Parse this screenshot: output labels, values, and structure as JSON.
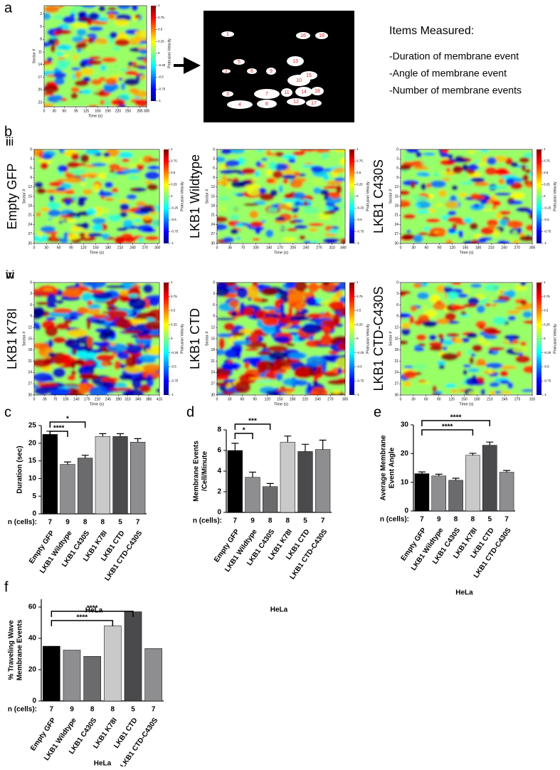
{
  "panels": [
    "a",
    "b",
    "c",
    "d",
    "e",
    "f"
  ],
  "mask": {
    "labels": [
      "1",
      "16",
      "19",
      "5",
      "13",
      "2",
      "6",
      "9",
      "10",
      "15",
      "3",
      "7",
      "11",
      "14",
      "18",
      "4",
      "8",
      "12",
      "17"
    ]
  },
  "items": {
    "title": "Items Measured:",
    "lines": [
      "-Duration of membrane event",
      "-Angle of membrane event",
      "-Number of membrane events"
    ]
  },
  "chart_data": [
    {
      "type": "heatmap",
      "xlabel": "Time (s)",
      "ylabel": "Sector #",
      "colorbar_label": "Protrusion Velocity",
      "xlim": [
        0,
        305
      ],
      "xticks": [
        0,
        30,
        60,
        95,
        125,
        160,
        190,
        220,
        250,
        285,
        305
      ],
      "ylim": [
        0,
        24
      ],
      "yticks": [
        2,
        5,
        8,
        11,
        14,
        17,
        20,
        23
      ],
      "clim": [
        -1,
        1
      ],
      "cticks": [
        -1,
        -0.75,
        -0.5,
        -0.25,
        0,
        0.25,
        0.5,
        0.75,
        1
      ]
    },
    {
      "type": "heatmap",
      "panel": "i",
      "title": "Empty GFP",
      "xlabel": "Time (s)",
      "ylabel": "Sector #",
      "colorbar_label": "Protrusion Velocity",
      "xlim": [
        0,
        305
      ],
      "xticks": [
        0,
        30,
        60,
        90,
        120,
        150,
        180,
        210,
        240,
        270,
        300
      ],
      "ylim": [
        0,
        30
      ],
      "yticks": [
        0,
        3,
        6,
        9,
        12,
        15,
        18,
        21,
        24,
        27,
        30
      ],
      "clim": [
        -1,
        1
      ],
      "cticks": [
        -1,
        -0.75,
        -0.5,
        -0.25,
        0,
        0.25,
        0.5,
        0.75,
        1
      ]
    },
    {
      "type": "heatmap",
      "panel": "ii",
      "title": "LKB1 Wildtype",
      "xlabel": "Time (s)",
      "ylabel": "Sector #",
      "colorbar_label": "Protrusion Velocity",
      "xlim": [
        0,
        345
      ],
      "xticks": [
        0,
        35,
        70,
        105,
        140,
        170,
        205,
        240,
        275,
        310,
        340
      ],
      "ylim": [
        0,
        30
      ],
      "yticks": [
        0,
        3,
        6,
        9,
        12,
        15,
        18,
        21,
        24,
        27,
        30
      ],
      "clim": [
        -1,
        1
      ],
      "cticks": [
        -1,
        -0.75,
        -0.5,
        -0.25,
        0,
        0.25,
        0.5,
        0.75,
        1
      ]
    },
    {
      "type": "heatmap",
      "panel": "iii",
      "title": "LKB1 C430S",
      "xlabel": "Time (s)",
      "ylabel": "Sector #",
      "colorbar_label": "Protrusion Velocity",
      "xlim": [
        0,
        305
      ],
      "xticks": [
        0,
        30,
        60,
        90,
        120,
        150,
        180,
        210,
        240,
        270,
        305
      ],
      "ylim": [
        0,
        30
      ],
      "yticks": [
        0,
        3,
        6,
        9,
        12,
        15,
        18,
        21,
        24,
        27,
        30
      ],
      "clim": [
        -1,
        1
      ],
      "cticks": [
        -1,
        -0.75,
        -0.5,
        -0.25,
        0,
        0.25,
        0.5,
        0.75,
        1
      ]
    },
    {
      "type": "heatmap",
      "panel": "iv",
      "title": "LKB1 K78I",
      "xlabel": "Time (s)",
      "ylabel": "Sector #",
      "colorbar_label": "Protrusion Velocity",
      "xlim": [
        0,
        415
      ],
      "xticks": [
        0,
        35,
        70,
        105,
        140,
        175,
        210,
        245,
        280,
        310,
        345,
        380,
        415
      ],
      "ylim": [
        0,
        30
      ],
      "yticks": [
        0,
        3,
        6,
        9,
        12,
        15,
        18,
        21,
        24,
        27,
        30
      ],
      "clim": [
        -1,
        1
      ],
      "cticks": [
        -1,
        -0.75,
        -0.5,
        -0.25,
        0,
        0.25,
        0.5,
        0.75,
        1
      ]
    },
    {
      "type": "heatmap",
      "panel": "v",
      "title": "LKB1 CTD",
      "xlabel": "Time (s)",
      "ylabel": "Sector #",
      "colorbar_label": "Protrusion Velocity",
      "xlim": [
        0,
        305
      ],
      "xticks": [
        0,
        30,
        60,
        90,
        120,
        150,
        180,
        210,
        240,
        270,
        305
      ],
      "ylim": [
        0,
        30
      ],
      "yticks": [
        0,
        3,
        6,
        9,
        12,
        15,
        18,
        21,
        24,
        27,
        30
      ],
      "clim": [
        -1,
        1
      ],
      "cticks": [
        -1,
        -0.75,
        -0.5,
        -0.25,
        0,
        0.25,
        0.5,
        0.75,
        1
      ]
    },
    {
      "type": "heatmap",
      "panel": "vi",
      "title": "LKB1 CTD-C430S",
      "xlabel": "Time (s)",
      "ylabel": "Sector #",
      "colorbar_label": "Protrusion Velocity",
      "xlim": [
        0,
        310
      ],
      "xticks": [
        0,
        30,
        60,
        90,
        120,
        150,
        180,
        210,
        245,
        275,
        310
      ],
      "ylim": [
        0,
        30
      ],
      "yticks": [
        0,
        3,
        6,
        9,
        12,
        15,
        18,
        21,
        24,
        27,
        30
      ],
      "clim": [
        -1,
        1
      ],
      "cticks": [
        -1,
        -0.75,
        -0.5,
        -0.25,
        0,
        0.25,
        0.5,
        0.75,
        1
      ]
    },
    {
      "type": "bar",
      "ylabel": [
        "Duration (sec)"
      ],
      "xlabel": "HeLa",
      "count_label": "n (cells):",
      "counts": [
        7,
        9,
        8,
        8,
        5,
        7
      ],
      "categories": [
        "Empty GFP",
        "LKB1 Wildtype",
        "LKB1 C430S",
        "LKB1 K78I",
        "LKB1 CTD",
        "LKB1 CTD-C430S"
      ],
      "values": [
        22.5,
        14,
        15.8,
        21.9,
        21.9,
        20.3
      ],
      "errors": [
        0.9,
        0.7,
        0.8,
        0.8,
        0.8,
        1.0
      ],
      "colors": [
        "#000000",
        "#8e8e90",
        "#6b6b6d",
        "#c9c9c9",
        "#4a4a4c",
        "#8e8e90"
      ],
      "ylim": [
        0,
        25
      ],
      "yticks": [
        0,
        5,
        10,
        15,
        20,
        25
      ],
      "significance": [
        {
          "pair": [
            "Empty GFP",
            "LKB1 Wildtype"
          ],
          "label": "****"
        },
        {
          "pair": [
            "Empty GFP",
            "LKB1 C430S"
          ],
          "label": "*"
        }
      ]
    },
    {
      "type": "bar",
      "ylabel": [
        "Membrane Events",
        "/Cell/Minute"
      ],
      "xlabel": "HeLa",
      "count_label": "n (cells):",
      "counts": [
        7,
        9,
        8,
        8,
        5,
        7
      ],
      "categories": [
        "Empty GFP",
        "LKB1 Wildtype",
        "LKB1 C430S",
        "LKB1 K78I",
        "LKB1 CTD",
        "LKB1 CTD-C430S"
      ],
      "values": [
        6.0,
        3.4,
        2.5,
        6.8,
        5.9,
        6.1
      ],
      "errors": [
        0.7,
        0.5,
        0.3,
        0.6,
        0.7,
        0.9
      ],
      "colors": [
        "#000000",
        "#8e8e90",
        "#6b6b6d",
        "#c9c9c9",
        "#4a4a4c",
        "#8e8e90"
      ],
      "ylim": [
        0,
        8
      ],
      "yticks": [
        0,
        2,
        4,
        6,
        8
      ],
      "significance": [
        {
          "pair": [
            "Empty GFP",
            "LKB1 Wildtype"
          ],
          "label": "*"
        },
        {
          "pair": [
            "Empty GFP",
            "LKB1 C430S"
          ],
          "label": "***"
        }
      ]
    },
    {
      "type": "bar",
      "ylabel": [
        "Average Membrane",
        "Event Angle"
      ],
      "xlabel": "HeLa",
      "count_label": "n (cells):",
      "counts": [
        7,
        9,
        8,
        8,
        5,
        7
      ],
      "categories": [
        "Empty GFP",
        "LKB1 Wildtype",
        "LKB1 C430S",
        "LKB1 K78I",
        "LKB1 CTD",
        "LKB1 CTD-C430S"
      ],
      "values": [
        13,
        12.2,
        10.7,
        19.4,
        22.9,
        13.5
      ],
      "errors": [
        0.6,
        0.6,
        0.7,
        0.7,
        1.1,
        0.6
      ],
      "colors": [
        "#000000",
        "#8e8e90",
        "#6b6b6d",
        "#c9c9c9",
        "#4a4a4c",
        "#8e8e90"
      ],
      "ylim": [
        0,
        30
      ],
      "yticks": [
        0,
        10,
        20,
        30
      ],
      "significance": [
        {
          "pair": [
            "Empty GFP",
            "LKB1 K78I"
          ],
          "label": "****"
        },
        {
          "pair": [
            "Empty GFP",
            "LKB1 CTD"
          ],
          "label": "****"
        }
      ]
    },
    {
      "type": "bar",
      "ylabel": [
        "% Traveling Wave",
        "Membrane Events"
      ],
      "xlabel": "HeLa",
      "count_label": "n (cells):",
      "counts": [
        7,
        9,
        8,
        8,
        5,
        7
      ],
      "categories": [
        "Empty GFP",
        "LKB1 Wildtype",
        "LKB1 C430S",
        "LKB1 K78I",
        "LKB1 CTD",
        "LKB1 CTD-C430S"
      ],
      "values": [
        35,
        32.5,
        28.5,
        48,
        57,
        33.5
      ],
      "colors": [
        "#000000",
        "#8e8e90",
        "#6b6b6d",
        "#c9c9c9",
        "#4a4a4c",
        "#8e8e90"
      ],
      "ylim": [
        0,
        65
      ],
      "yticks": [
        0,
        20,
        40,
        60
      ],
      "significance": [
        {
          "pair": [
            "Empty GFP",
            "LKB1 K78I"
          ],
          "label": "****"
        },
        {
          "pair": [
            "Empty GFP",
            "LKB1 CTD"
          ],
          "label": "****"
        }
      ]
    }
  ]
}
